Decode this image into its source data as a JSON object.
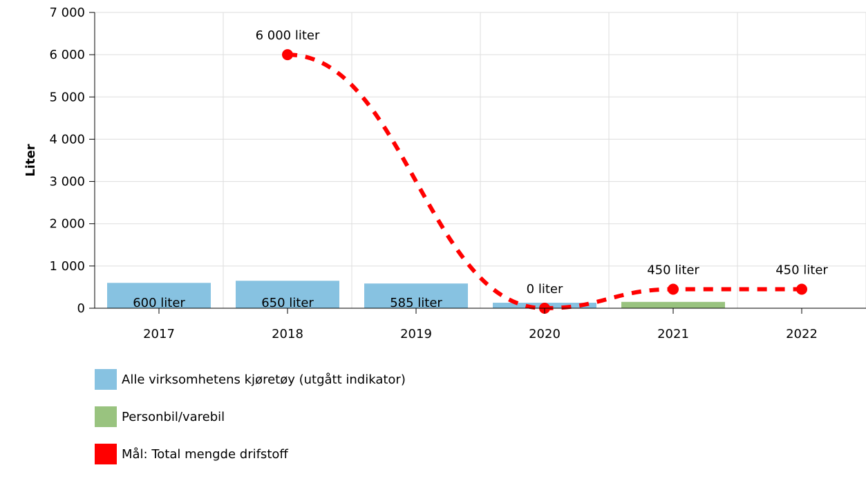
{
  "chart_data": {
    "type": "bar",
    "categories": [
      "2017",
      "2018",
      "2019",
      "2020",
      "2021",
      "2022"
    ],
    "ylabel": "Liter",
    "ylim": [
      0,
      7000
    ],
    "yticks": [
      0,
      1000,
      2000,
      3000,
      4000,
      5000,
      6000,
      7000
    ],
    "ytick_labels": [
      "0",
      "1 000",
      "2 000",
      "3 000",
      "4 000",
      "5 000",
      "6 000",
      "7 000"
    ],
    "grid": true,
    "legend_position": "bottom-left",
    "series": [
      {
        "name": "Alle virksomhetens kjøretøy (utgått indikator)",
        "type": "bar",
        "color": "#87c2e1",
        "values": [
          600,
          650,
          585,
          130,
          null,
          null
        ],
        "data_labels": [
          "600 liter",
          "650 liter",
          "585 liter",
          null,
          null,
          null
        ]
      },
      {
        "name": "Personbil/varebil",
        "type": "bar",
        "color": "#99c37f",
        "values": [
          null,
          null,
          null,
          null,
          150,
          null
        ],
        "data_labels": [
          null,
          null,
          null,
          null,
          null,
          null
        ]
      },
      {
        "name": "Mål: Total mengde drifstoff",
        "type": "line",
        "style": "dashed",
        "color": "#ff0000",
        "values": [
          null,
          6000,
          null,
          0,
          450,
          450
        ],
        "data_labels": [
          null,
          "6 000 liter",
          null,
          "0 liter",
          "450 liter",
          "450 liter"
        ]
      }
    ]
  }
}
